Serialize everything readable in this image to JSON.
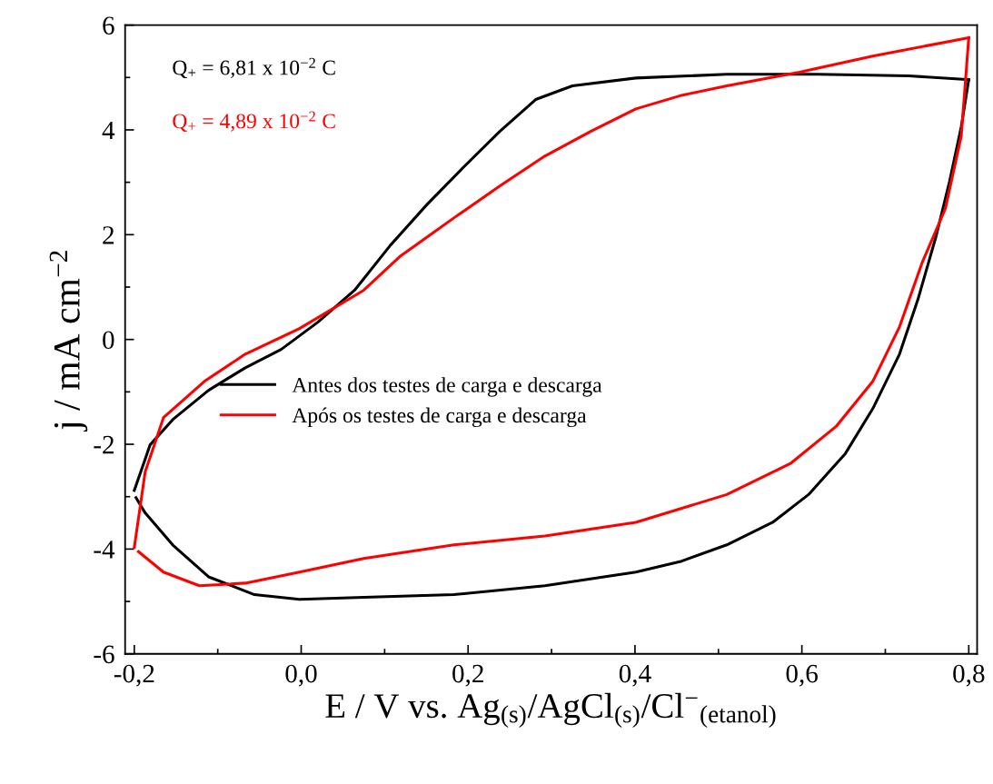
{
  "chart_data": {
    "type": "line",
    "xlabel": "E / V vs. Ag$_{(s)}$/AgCl$_{(s)}$/Cl$^{−}$$_{(etanol)}$",
    "ylabel": "j / mA cm$^{−2}$",
    "annotations": [
      "Q$_{+}$ = 6,81 x 10$^{−2}$ C",
      "Q$_{+}$ = 4,89 x 10$^{−2}$ C"
    ],
    "xlim": [
      -0.211,
      0.81
    ],
    "ylim": [
      -6,
      6
    ],
    "xticks": [
      {
        "value": -0.2,
        "label": "-0,2"
      },
      {
        "value": -0.1,
        "label": null
      },
      {
        "value": 0.0,
        "label": "0,0"
      },
      {
        "value": 0.1,
        "label": null
      },
      {
        "value": 0.2,
        "label": "0,2"
      },
      {
        "value": 0.3,
        "label": null
      },
      {
        "value": 0.4,
        "label": "0,4"
      },
      {
        "value": 0.5,
        "label": null
      },
      {
        "value": 0.6,
        "label": "0,6"
      },
      {
        "value": 0.7,
        "label": null
      },
      {
        "value": 0.8,
        "label": "0,8"
      }
    ],
    "yticks": [
      -6,
      {
        "value": -5,
        "label": null
      },
      -4,
      {
        "value": -3,
        "label": null
      },
      -2,
      {
        "value": -1,
        "label": null
      },
      0,
      {
        "value": 1,
        "label": null
      },
      2,
      {
        "value": 3,
        "label": null
      },
      4,
      {
        "value": 5,
        "label": null
      },
      6
    ],
    "grid": false,
    "legend": "left",
    "marker": "none",
    "line_style": "solid",
    "series": [
      {
        "name": "Antes dos testes de carga e descarga",
        "color": "#000000",
        "x": [
          -0.2,
          -0.181,
          -0.154,
          -0.111,
          -0.067,
          -0.024,
          0.02,
          0.064,
          0.107,
          0.151,
          0.194,
          0.238,
          0.281,
          0.325,
          0.401,
          0.51,
          0.619,
          0.728,
          0.8
        ],
        "values": [
          -2.88,
          -2.01,
          -1.53,
          -0.97,
          -0.54,
          -0.19,
          0.33,
          0.94,
          1.8,
          2.58,
          3.28,
          3.97,
          4.58,
          4.84,
          4.99,
          5.06,
          5.06,
          5.03,
          4.96
        ]
      },
      {
        "color": "#000000",
        "x": [
          0.8,
          0.791,
          0.777,
          0.761,
          0.739,
          0.717,
          0.685,
          0.652,
          0.608,
          0.565,
          0.51,
          0.456,
          0.401,
          0.292,
          0.183,
          0.075,
          -0.002,
          -0.056,
          -0.111,
          -0.154,
          -0.187,
          -0.198
        ],
        "values": [
          4.96,
          4.06,
          3.02,
          1.98,
          0.76,
          -0.28,
          -1.32,
          -2.18,
          -2.96,
          -3.49,
          -3.92,
          -4.23,
          -4.44,
          -4.7,
          -4.87,
          -4.92,
          -4.96,
          -4.87,
          -4.53,
          -3.92,
          -3.31,
          -3.02
        ]
      },
      {
        "name": "Após os testes de carga e descarga",
        "color": "#ff0000",
        "x": [
          -0.2,
          -0.187,
          -0.165,
          -0.116,
          -0.067,
          -0.002,
          0.075,
          0.118,
          0.183,
          0.238,
          0.292,
          0.347,
          0.401,
          0.456,
          0.51,
          0.597,
          0.685,
          0.8
        ],
        "values": [
          -3.97,
          -2.53,
          -1.49,
          -0.8,
          -0.28,
          0.21,
          0.94,
          1.58,
          2.32,
          2.93,
          3.5,
          3.97,
          4.4,
          4.66,
          4.84,
          5.1,
          5.41,
          5.76
        ]
      },
      {
        "color": "#ff0000",
        "x": [
          0.8,
          0.791,
          0.772,
          0.744,
          0.717,
          0.685,
          0.641,
          0.587,
          0.51,
          0.401,
          0.292,
          0.183,
          0.075,
          -0.002,
          -0.067,
          -0.122,
          -0.165,
          -0.195
        ],
        "values": [
          5.76,
          3.88,
          2.5,
          1.46,
          0.24,
          -0.8,
          -1.66,
          -2.36,
          -2.96,
          -3.49,
          -3.75,
          -3.92,
          -4.18,
          -4.44,
          -4.65,
          -4.7,
          -4.44,
          -4.05
        ]
      }
    ]
  }
}
